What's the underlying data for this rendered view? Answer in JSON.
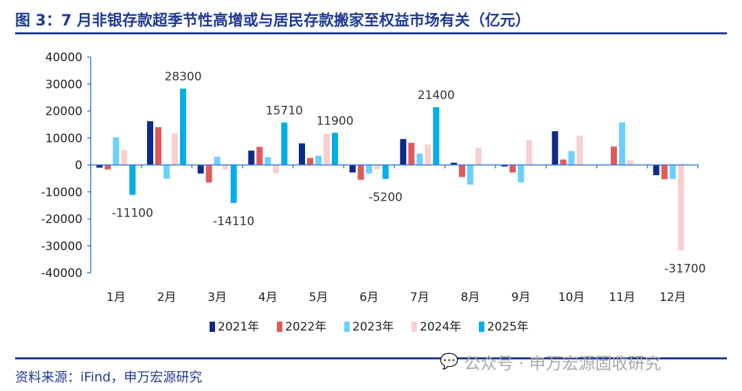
{
  "title": "图 3：7 月非银存款超季节性高增或与居民存款搬家至权益市场有关（亿元）",
  "source": "资料来源：iFind，申万宏源研究",
  "watermark": "公众号 · 申万宏源固收研究",
  "watermark_icon": "wechat-icon",
  "chart_data": {
    "type": "bar",
    "title": "图 3：7 月非银存款超季节性高增或与居民存款搬家至权益市场有关（亿元）",
    "xlabel": "",
    "ylabel": "",
    "ylim": [
      -40000,
      40000
    ],
    "yticks": [
      "40000",
      "30000",
      "20000",
      "10000",
      "0",
      "-10000",
      "-20000",
      "-30000",
      "-40000"
    ],
    "grid": false,
    "legend_position": "bottom",
    "categories": [
      "1月",
      "2月",
      "3月",
      "4月",
      "5月",
      "6月",
      "7月",
      "8月",
      "9月",
      "10月",
      "11月",
      "12月"
    ],
    "series": [
      {
        "name": "2021年",
        "color": "#0e2a8a",
        "values": [
          -1000,
          16200,
          -3200,
          5300,
          8000,
          -2800,
          9600,
          800,
          -600,
          12500,
          0,
          -3800
        ]
      },
      {
        "name": "2022年",
        "color": "#e05a5a",
        "values": [
          -1700,
          14000,
          -6500,
          6700,
          2600,
          -5500,
          8200,
          -4500,
          -2800,
          2000,
          6800,
          -5300
        ]
      },
      {
        "name": "2023年",
        "color": "#6ad0ff",
        "values": [
          10200,
          -5100,
          3000,
          2900,
          3400,
          -3200,
          4200,
          -7300,
          -6500,
          5100,
          15800,
          -5200
        ]
      },
      {
        "name": "2024年",
        "color": "#f8d0d0",
        "values": [
          5500,
          11700,
          -1700,
          -3200,
          11600,
          -1600,
          7500,
          6400,
          9200,
          10900,
          1700,
          -31700
        ]
      },
      {
        "name": "2025年",
        "color": "#00aee8",
        "values": [
          -11100,
          28300,
          -14110,
          15710,
          11900,
          -5200,
          21400,
          null,
          null,
          null,
          null,
          null
        ]
      }
    ],
    "annotations": [
      {
        "text": "-11100",
        "category": "1月",
        "series": "2025年",
        "value": -11100
      },
      {
        "text": "28300",
        "category": "2月",
        "series": "2025年",
        "value": 28300
      },
      {
        "text": "-14110",
        "category": "3月",
        "series": "2025年",
        "value": -14110
      },
      {
        "text": "15710",
        "category": "4月",
        "series": "2025年",
        "value": 15710
      },
      {
        "text": "11900",
        "category": "5月",
        "series": "2025年",
        "value": 11900
      },
      {
        "text": "-5200",
        "category": "6月",
        "series": "2025年",
        "value": -5200
      },
      {
        "text": "21400",
        "category": "7月",
        "series": "2025年",
        "value": 21400
      },
      {
        "text": "-31700",
        "category": "12月",
        "series": "2024年",
        "value": -31700
      }
    ]
  }
}
